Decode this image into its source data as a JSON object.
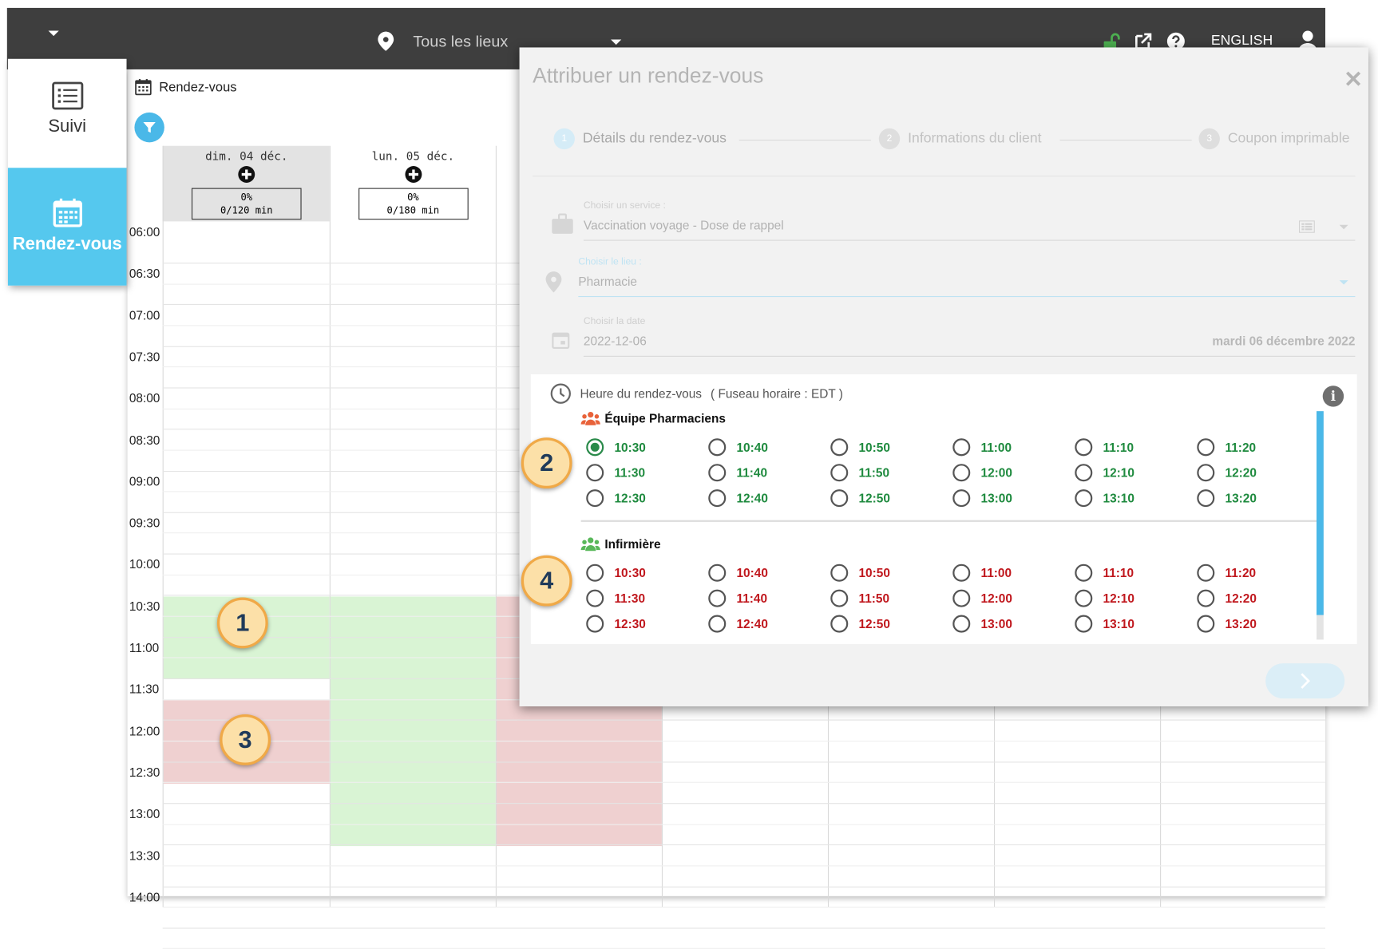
{
  "topbar": {
    "location_label": "Tous les lieux",
    "language_label": "ENGLISH"
  },
  "sidebar": {
    "items": [
      {
        "label": "Suivi",
        "icon": "list-icon"
      },
      {
        "label": "Rendez-vous",
        "icon": "calendar-icon"
      }
    ]
  },
  "calendar": {
    "breadcrumb": "Rendez-vous",
    "days": [
      {
        "label": "dim. 04 déc.",
        "percent": "0%",
        "capacity": "0/120 min"
      },
      {
        "label": "lun. 05 déc.",
        "percent": "0%",
        "capacity": "0/180 min"
      }
    ],
    "time_labels": [
      "06:00",
      "06:30",
      "07:00",
      "07:30",
      "08:00",
      "08:30",
      "09:00",
      "09:30",
      "10:00",
      "10:30",
      "11:00",
      "11:30",
      "12:00",
      "12:30",
      "13:00",
      "13:30",
      "14:00"
    ]
  },
  "callouts": [
    "1",
    "2",
    "3",
    "4"
  ],
  "dialog": {
    "title": "Attribuer un rendez-vous",
    "close": "✕",
    "steps": [
      {
        "num": "1",
        "label": "Détails du rendez-vous"
      },
      {
        "num": "2",
        "label": "Informations du client"
      },
      {
        "num": "3",
        "label": "Coupon imprimable"
      }
    ],
    "service": {
      "label": "Choisir un service :",
      "value": "Vaccination voyage - Dose de rappel"
    },
    "place": {
      "label": "Choisir le lieu :",
      "value": "Pharmacie"
    },
    "date": {
      "label": "Choisir la date",
      "value": "2022-12-06",
      "long": "mardi 06 décembre 2022"
    },
    "time_section": {
      "heading": "Heure du rendez-vous",
      "timezone": "( Fuseau horaire : EDT )",
      "groups": [
        {
          "name": "Équipe Pharmaciens",
          "status": "available",
          "color": "#1e8a3e",
          "selected": "10:30",
          "slots": [
            "10:30",
            "10:40",
            "10:50",
            "11:00",
            "11:10",
            "11:20",
            "11:30",
            "11:40",
            "11:50",
            "12:00",
            "12:10",
            "12:20",
            "12:30",
            "12:40",
            "12:50",
            "13:00",
            "13:10",
            "13:20"
          ]
        },
        {
          "name": "Infirmière",
          "status": "unavailable",
          "color": "#c0171d",
          "selected": null,
          "slots": [
            "10:30",
            "10:40",
            "10:50",
            "11:00",
            "11:10",
            "11:20",
            "11:30",
            "11:40",
            "11:50",
            "12:00",
            "12:10",
            "12:20",
            "12:30",
            "12:40",
            "12:50",
            "13:00",
            "13:10",
            "13:20"
          ]
        }
      ]
    }
  },
  "colors": {
    "accent": "#55c8ee",
    "topbar": "#3e3e3e",
    "available_block": "#d5efd0",
    "unavailable_block": "#ecc9c7",
    "callout_fill": "#fce0a8",
    "callout_border": "#f0a947"
  }
}
